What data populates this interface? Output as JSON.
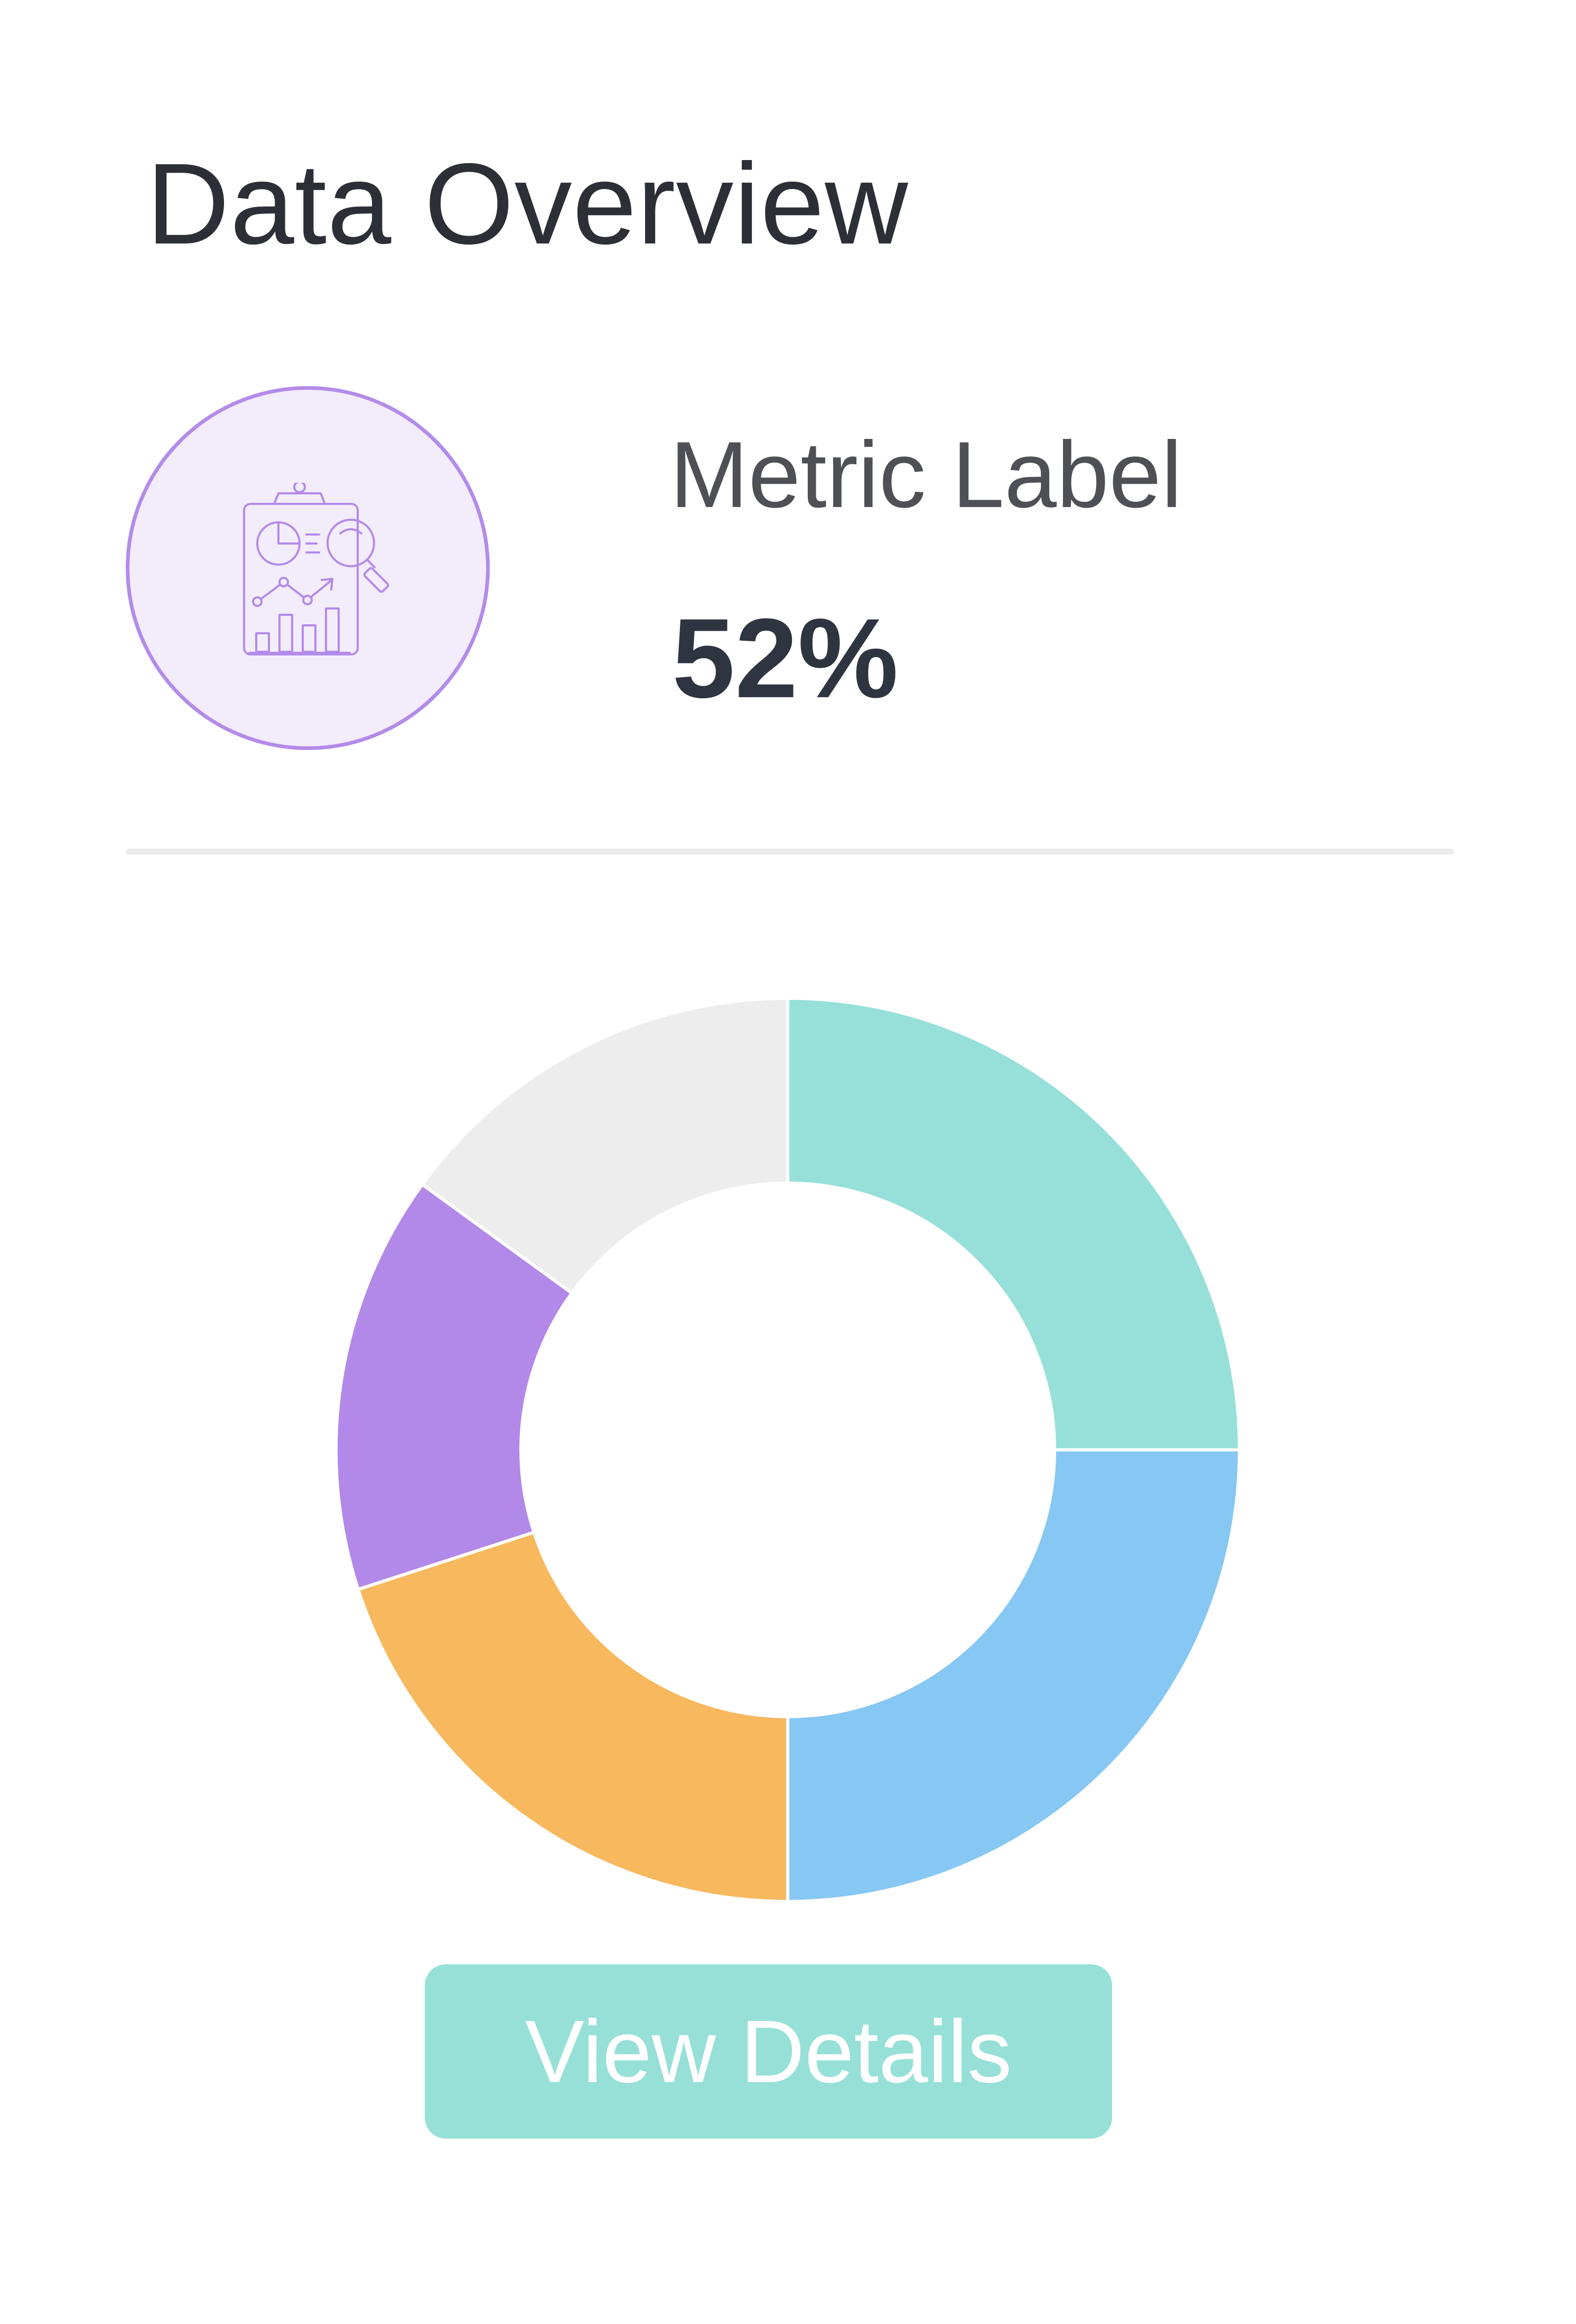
{
  "header": {
    "title": "Data Overview"
  },
  "metric": {
    "icon": "report-analytics-icon",
    "label": "Metric Label",
    "value": "52%"
  },
  "chart_data": {
    "type": "pie",
    "style": "donut",
    "categories": [
      "Teal",
      "Blue",
      "Orange",
      "Purple",
      "Gray"
    ],
    "values": [
      25,
      25,
      20,
      15,
      15
    ],
    "colors": [
      "#96e0d9",
      "#86c7f3",
      "#f7b85e",
      "#b289e9",
      "#ededed"
    ],
    "title": "",
    "legend": "none"
  },
  "button": {
    "label": "View Details"
  },
  "colors": {
    "accent_teal": "#96e0d7",
    "accent_purple": "#b38bea",
    "icon_circle_fill": "#f3ecfb",
    "text_dark": "#2c2f36",
    "divider": "#ebebeb"
  }
}
